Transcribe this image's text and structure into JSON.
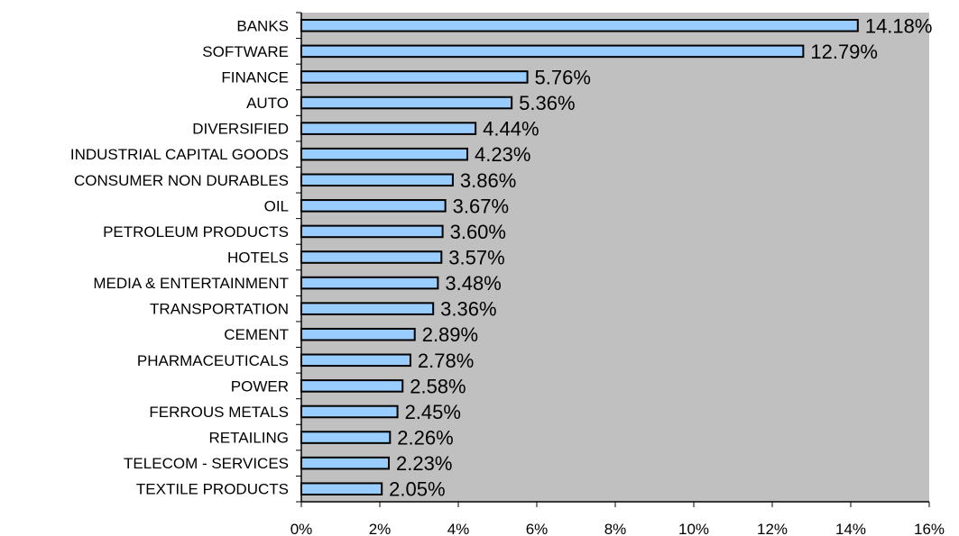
{
  "chart_data": {
    "type": "bar",
    "orientation": "horizontal",
    "categories": [
      "BANKS",
      "SOFTWARE",
      "FINANCE",
      "AUTO",
      "DIVERSIFIED",
      "INDUSTRIAL CAPITAL GOODS",
      "CONSUMER NON DURABLES",
      "OIL",
      "PETROLEUM PRODUCTS",
      "HOTELS",
      "MEDIA & ENTERTAINMENT",
      "TRANSPORTATION",
      "CEMENT",
      "PHARMACEUTICALS",
      "POWER",
      "FERROUS METALS",
      "RETAILING",
      "TELECOM - SERVICES",
      "TEXTILE PRODUCTS"
    ],
    "values": [
      14.18,
      12.79,
      5.76,
      5.36,
      4.44,
      4.23,
      3.86,
      3.67,
      3.6,
      3.57,
      3.48,
      3.36,
      2.89,
      2.78,
      2.58,
      2.45,
      2.26,
      2.23,
      2.05
    ],
    "data_labels": [
      "14.18%",
      "12.79%",
      "5.76%",
      "5.36%",
      "4.44%",
      "4.23%",
      "3.86%",
      "3.67%",
      "3.60%",
      "3.57%",
      "3.48%",
      "3.36%",
      "2.89%",
      "2.78%",
      "2.58%",
      "2.45%",
      "2.26%",
      "2.23%",
      "2.05%"
    ],
    "xlim": [
      0,
      16
    ],
    "xticks": [
      0,
      2,
      4,
      6,
      8,
      10,
      12,
      14,
      16
    ],
    "xtick_labels": [
      "0%",
      "2%",
      "4%",
      "6%",
      "8%",
      "10%",
      "12%",
      "14%",
      "16%"
    ],
    "grid": false,
    "colors": {
      "bar": "#99ccff",
      "bar_edge": "#000000",
      "plot_background": "#c0c0c0"
    }
  }
}
